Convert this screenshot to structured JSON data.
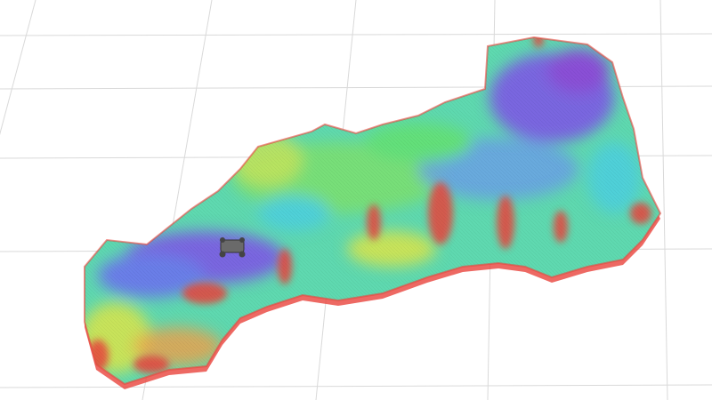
{
  "scene": {
    "background_color": "#ffffff",
    "grid_color": "#d9d9d9",
    "colormap": [
      "#8a4fd6",
      "#6a7ee8",
      "#4fd0d8",
      "#63e07a",
      "#c8e35a",
      "#f0a04a",
      "#e8443c"
    ],
    "elevation_map": {
      "edge_color": "#e8443c",
      "low_color": "#7a66e0",
      "mid_color": "#5fd9b0"
    },
    "robot": {
      "icon": "robot-model-icon",
      "color": "#5a5a5a"
    }
  }
}
